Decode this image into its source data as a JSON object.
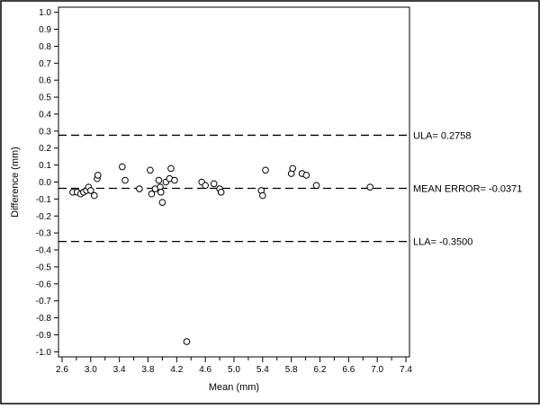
{
  "chart_data": {
    "type": "scatter",
    "title": "",
    "xlabel": "Mean (mm)",
    "ylabel": "Difference (mm)",
    "xlim": [
      2.55,
      7.45
    ],
    "ylim": [
      -1.03,
      1.03
    ],
    "xticks": [
      2.6,
      2.8,
      3.0,
      3.2,
      3.4,
      3.6,
      3.8,
      4.0,
      4.2,
      4.4,
      4.6,
      4.8,
      5.0,
      5.2,
      5.4,
      5.6,
      5.8,
      6.0,
      6.2,
      6.4,
      6.6,
      6.8,
      7.0,
      7.2,
      7.4
    ],
    "xtick_labels": [
      "2.6",
      "",
      "3.0",
      "",
      "3.4",
      "",
      "3.8",
      "",
      "4.2",
      "",
      "4.6",
      "",
      "5.0",
      "",
      "5.4",
      "",
      "5.8",
      "",
      "6.2",
      "",
      "6.6",
      "",
      "7.0",
      "",
      "7.4"
    ],
    "yticks": [
      1.0,
      0.9,
      0.8,
      0.7,
      0.6,
      0.5,
      0.4,
      0.3,
      0.2,
      0.1,
      0.0,
      -0.1,
      -0.2,
      -0.3,
      -0.4,
      -0.5,
      -0.6,
      -0.7,
      -0.8,
      -0.9,
      -1.0
    ],
    "ytick_labels": [
      "1.0",
      "0.9",
      "0.8",
      "0.7",
      "0.6",
      "0.5",
      "0.4",
      "0.3",
      "0.2",
      "0.1",
      "0.0",
      "-0.1",
      "-0.2",
      "-0.3",
      "-0.4",
      "-0.5",
      "-0.6",
      "-0.7",
      "-0.8",
      "-0.9",
      "-1.0"
    ],
    "grid": false,
    "marker": "open-circle",
    "points": [
      {
        "x": 2.75,
        "y": -0.06
      },
      {
        "x": 2.81,
        "y": -0.06
      },
      {
        "x": 2.86,
        "y": -0.07
      },
      {
        "x": 2.9,
        "y": -0.06
      },
      {
        "x": 2.94,
        "y": -0.05
      },
      {
        "x": 2.97,
        "y": -0.03
      },
      {
        "x": 3.0,
        "y": -0.05
      },
      {
        "x": 3.05,
        "y": -0.08
      },
      {
        "x": 3.09,
        "y": 0.02
      },
      {
        "x": 3.1,
        "y": 0.04
      },
      {
        "x": 3.44,
        "y": 0.09
      },
      {
        "x": 3.48,
        "y": 0.01
      },
      {
        "x": 3.68,
        "y": -0.04
      },
      {
        "x": 3.83,
        "y": 0.07
      },
      {
        "x": 3.85,
        "y": -0.07
      },
      {
        "x": 3.9,
        "y": -0.04
      },
      {
        "x": 3.95,
        "y": 0.01
      },
      {
        "x": 3.97,
        "y": -0.03
      },
      {
        "x": 3.98,
        "y": -0.06
      },
      {
        "x": 4.0,
        "y": -0.12
      },
      {
        "x": 4.05,
        "y": 0.0
      },
      {
        "x": 4.1,
        "y": 0.02
      },
      {
        "x": 4.12,
        "y": 0.08
      },
      {
        "x": 4.17,
        "y": 0.01
      },
      {
        "x": 4.34,
        "y": -0.94
      },
      {
        "x": 4.55,
        "y": 0.0
      },
      {
        "x": 4.6,
        "y": -0.02
      },
      {
        "x": 4.72,
        "y": -0.01
      },
      {
        "x": 4.8,
        "y": -0.04
      },
      {
        "x": 4.82,
        "y": -0.06
      },
      {
        "x": 5.38,
        "y": -0.05
      },
      {
        "x": 5.4,
        "y": -0.08
      },
      {
        "x": 5.44,
        "y": 0.07
      },
      {
        "x": 5.8,
        "y": 0.05
      },
      {
        "x": 5.82,
        "y": 0.08
      },
      {
        "x": 5.95,
        "y": 0.05
      },
      {
        "x": 6.01,
        "y": 0.04
      },
      {
        "x": 6.15,
        "y": -0.02
      },
      {
        "x": 6.9,
        "y": -0.03
      }
    ],
    "reference_lines": [
      {
        "y": 0.2758,
        "label": "ULA= 0.2758",
        "style": "dashed"
      },
      {
        "y": -0.0371,
        "label": "MEAN ERROR= -0.0371",
        "style": "dashed"
      },
      {
        "y": -0.35,
        "label": "LLA= -0.3500",
        "style": "dashed"
      }
    ]
  }
}
